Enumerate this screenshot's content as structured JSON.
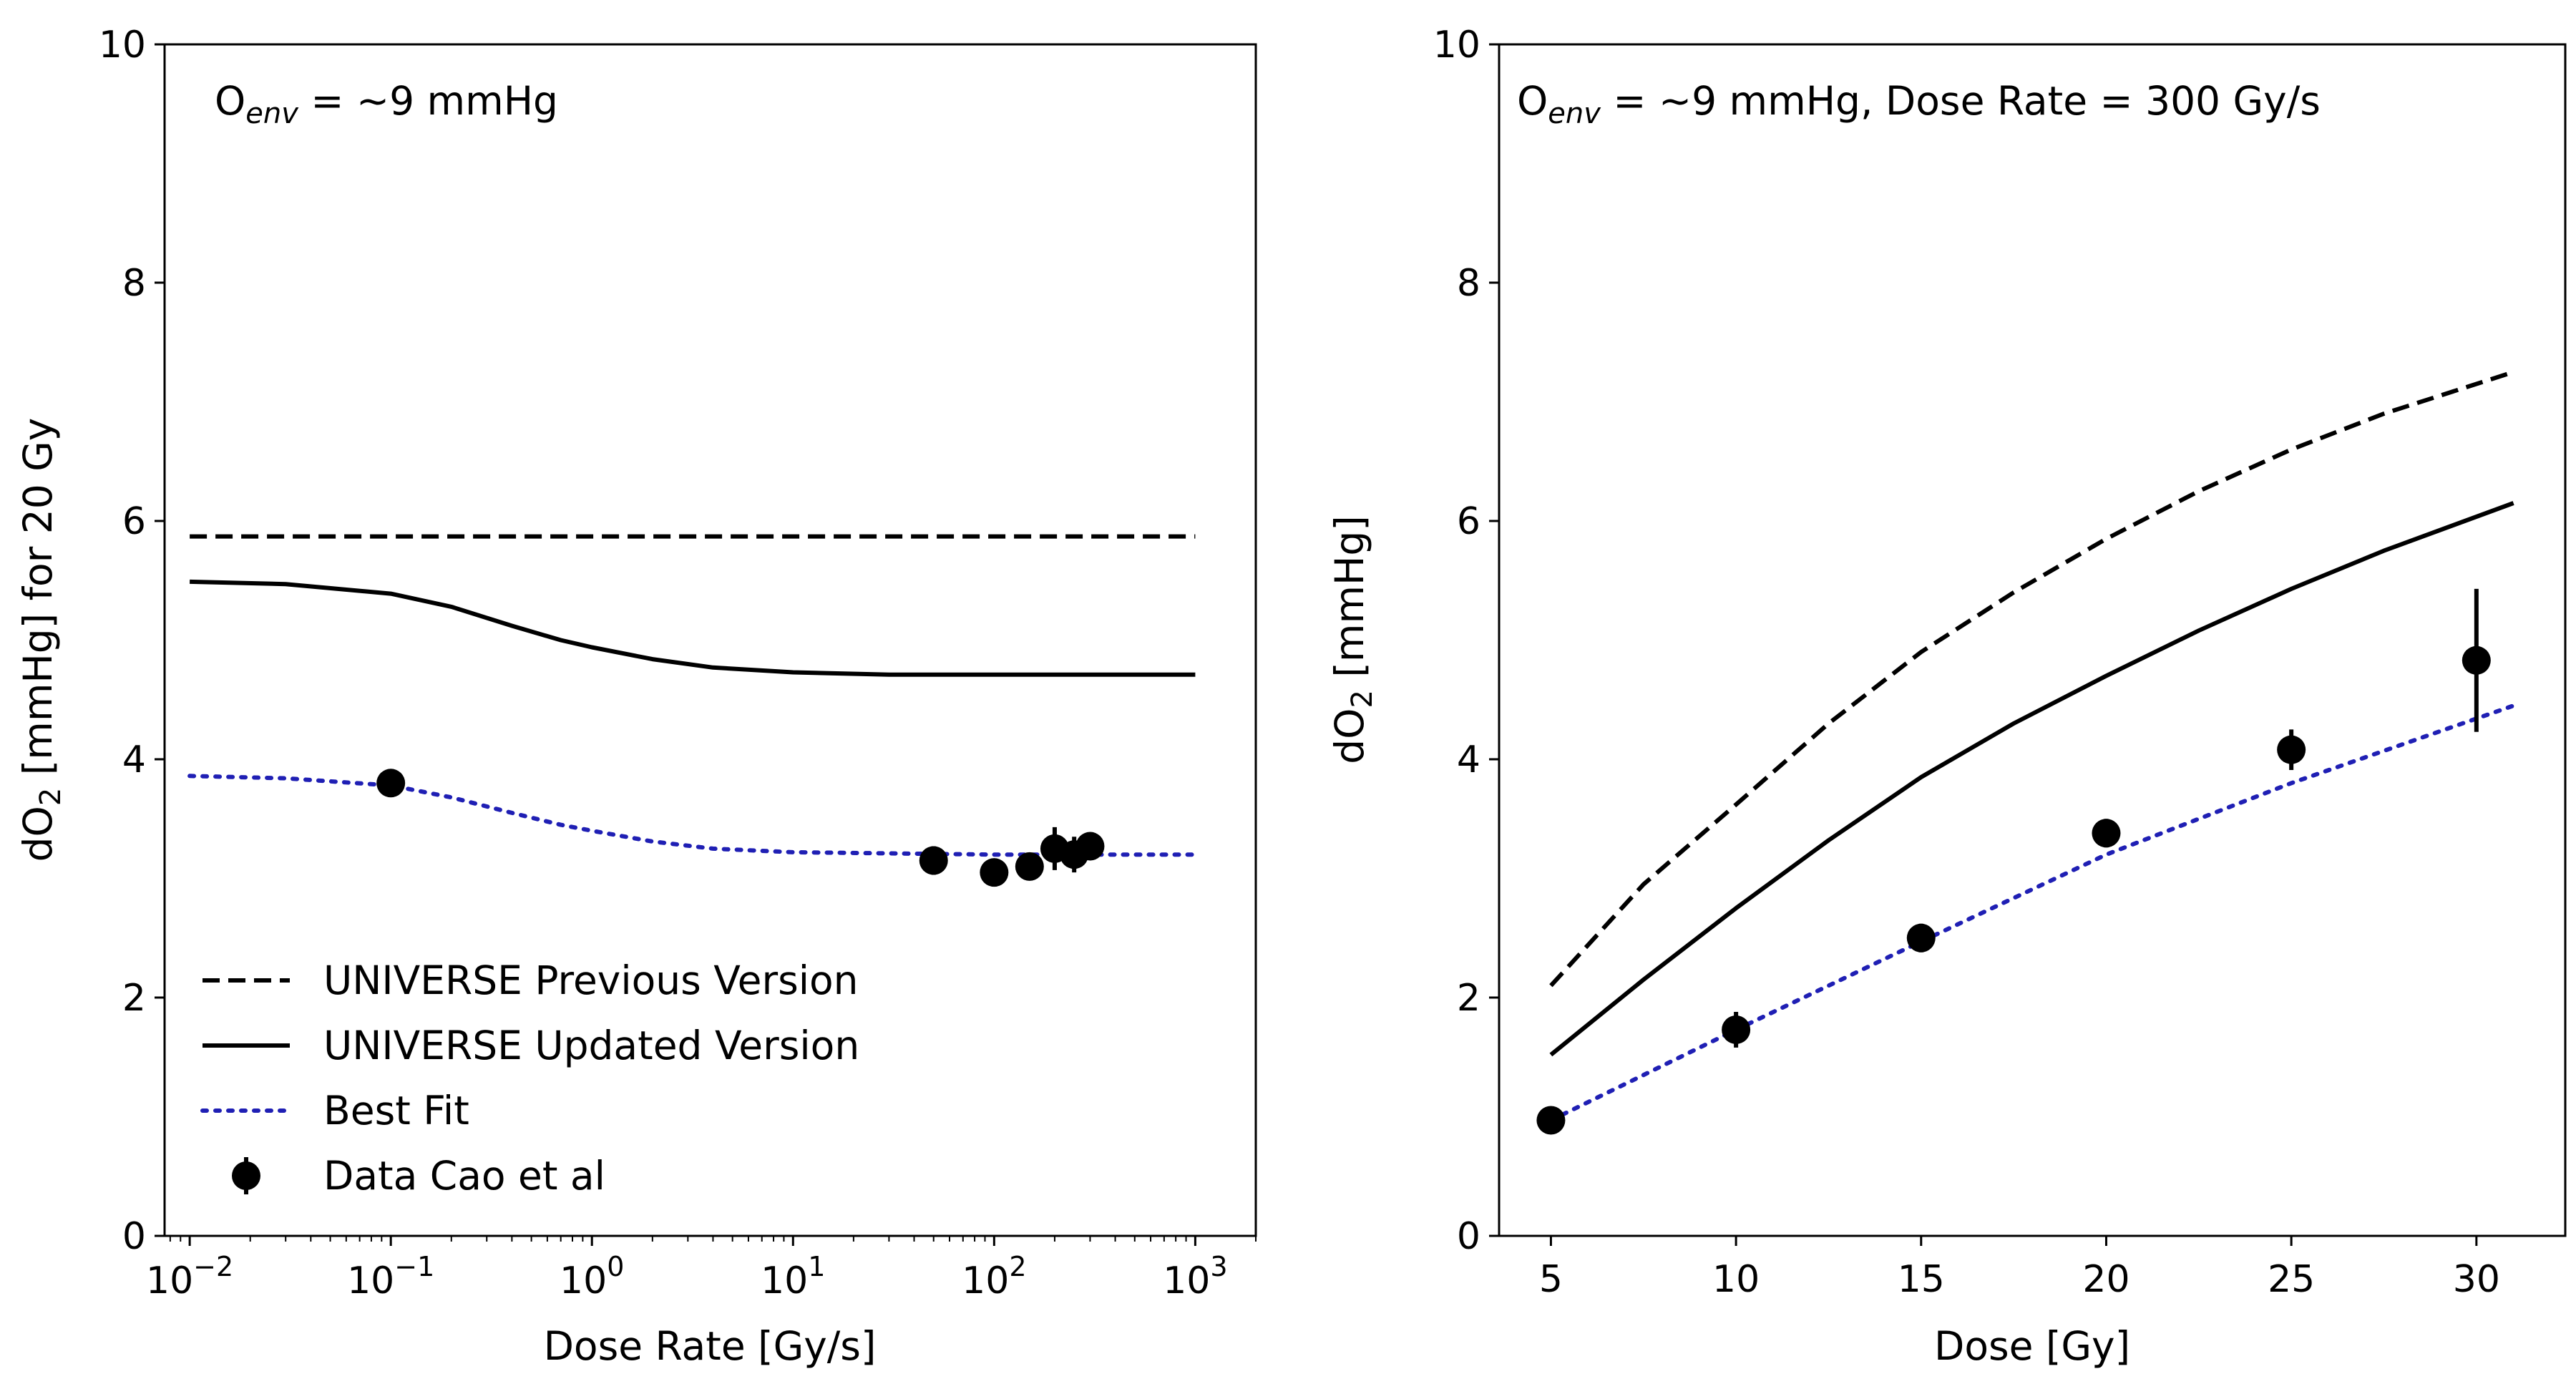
{
  "colors": {
    "black": "#000000",
    "fit": "#1f1fb4"
  },
  "chart_data": [
    {
      "type": "line",
      "xscale": "log",
      "xlim": [
        0.0075,
        2000
      ],
      "ylim": [
        0,
        10
      ],
      "yticks": [
        0,
        2,
        4,
        6,
        8,
        10
      ],
      "ytick_labels": [
        "0",
        "2",
        "4",
        "6",
        "8",
        "10"
      ],
      "xticks": [
        0.01,
        0.1,
        1,
        10,
        100,
        1000
      ],
      "xtick_base": [
        "10",
        "10",
        "10",
        "10",
        "10",
        "10"
      ],
      "xtick_exp": [
        "−2",
        "−1",
        "0",
        "1",
        "2",
        "3"
      ],
      "xlabel": "Dose Rate [Gy/s]",
      "ylabel": {
        "pre": "dO",
        "sub": "2",
        "post": " [mmHg] for 20 Gy"
      },
      "annotation": {
        "pre": "O",
        "sub": "env",
        "post": " = ~9 mmHg"
      },
      "series": [
        {
          "name": "UNIVERSE Previous Version",
          "style": "dashed",
          "x": [
            0.01,
            0.1,
            1,
            10,
            100,
            1000
          ],
          "y": [
            5.87,
            5.87,
            5.87,
            5.87,
            5.87,
            5.87
          ]
        },
        {
          "name": "UNIVERSE Updated Version",
          "style": "solid",
          "x": [
            0.01,
            0.03,
            0.1,
            0.2,
            0.4,
            0.7,
            1,
            2,
            4,
            10,
            30,
            100,
            1000
          ],
          "y": [
            5.49,
            5.47,
            5.39,
            5.28,
            5.12,
            5.0,
            4.94,
            4.84,
            4.77,
            4.73,
            4.71,
            4.71,
            4.71
          ]
        },
        {
          "name": "Best Fit",
          "style": "dotted",
          "x": [
            0.01,
            0.03,
            0.1,
            0.2,
            0.4,
            0.7,
            1,
            2,
            4,
            10,
            30,
            100,
            1000
          ],
          "y": [
            3.86,
            3.84,
            3.78,
            3.68,
            3.55,
            3.45,
            3.4,
            3.31,
            3.25,
            3.22,
            3.21,
            3.2,
            3.2
          ]
        }
      ],
      "data_points": {
        "name": "Data Cao et al",
        "x": [
          0.1,
          50,
          100,
          150,
          200,
          250,
          300
        ],
        "y": [
          3.8,
          3.15,
          3.05,
          3.1,
          3.25,
          3.2,
          3.27
        ],
        "yerr": [
          0.05,
          0.12,
          0.08,
          0.08,
          0.18,
          0.15,
          0.08
        ]
      },
      "legend": {
        "position": "lower-left",
        "entries": [
          "UNIVERSE Previous Version",
          "UNIVERSE Updated Version",
          "Best Fit",
          "Data Cao et al"
        ]
      }
    },
    {
      "type": "line",
      "xscale": "linear",
      "xlim": [
        3.6,
        32.4
      ],
      "ylim": [
        0,
        10
      ],
      "yticks": [
        0,
        2,
        4,
        6,
        8,
        10
      ],
      "ytick_labels": [
        "0",
        "2",
        "4",
        "6",
        "8",
        "10"
      ],
      "xticks": [
        5,
        10,
        15,
        20,
        25,
        30
      ],
      "xtick_labels": [
        "5",
        "10",
        "15",
        "20",
        "25",
        "30"
      ],
      "xlabel": "Dose [Gy]",
      "ylabel": {
        "pre": "dO",
        "sub": "2",
        "post": " [mmHg]"
      },
      "annotation": {
        "pre": "O",
        "sub": "env",
        "post": " = ~9 mmHg, Dose Rate = 300 Gy/s"
      },
      "series": [
        {
          "name": "UNIVERSE Previous Version",
          "style": "dashed",
          "x": [
            5,
            7.5,
            10,
            12.5,
            15,
            17.5,
            20,
            22.5,
            25,
            27.5,
            31
          ],
          "y": [
            2.1,
            2.95,
            3.62,
            4.3,
            4.9,
            5.4,
            5.85,
            6.25,
            6.6,
            6.9,
            7.25
          ]
        },
        {
          "name": "UNIVERSE Updated Version",
          "style": "solid",
          "x": [
            5,
            7.5,
            10,
            12.5,
            15,
            17.5,
            20,
            22.5,
            25,
            27.5,
            31
          ],
          "y": [
            1.52,
            2.15,
            2.75,
            3.32,
            3.85,
            4.3,
            4.7,
            5.08,
            5.43,
            5.75,
            6.15
          ]
        },
        {
          "name": "Best Fit",
          "style": "dotted",
          "x": [
            5,
            10,
            15,
            20,
            25,
            31
          ],
          "y": [
            0.97,
            1.73,
            2.47,
            3.2,
            3.8,
            4.45
          ]
        }
      ],
      "data_points": {
        "name": "Data Cao et al",
        "x": [
          5,
          10,
          15,
          20,
          25,
          30
        ],
        "y": [
          0.97,
          1.73,
          2.5,
          3.38,
          4.08,
          4.83
        ],
        "yerr": [
          0.05,
          0.15,
          0.12,
          0.12,
          0.17,
          0.6
        ]
      }
    }
  ]
}
